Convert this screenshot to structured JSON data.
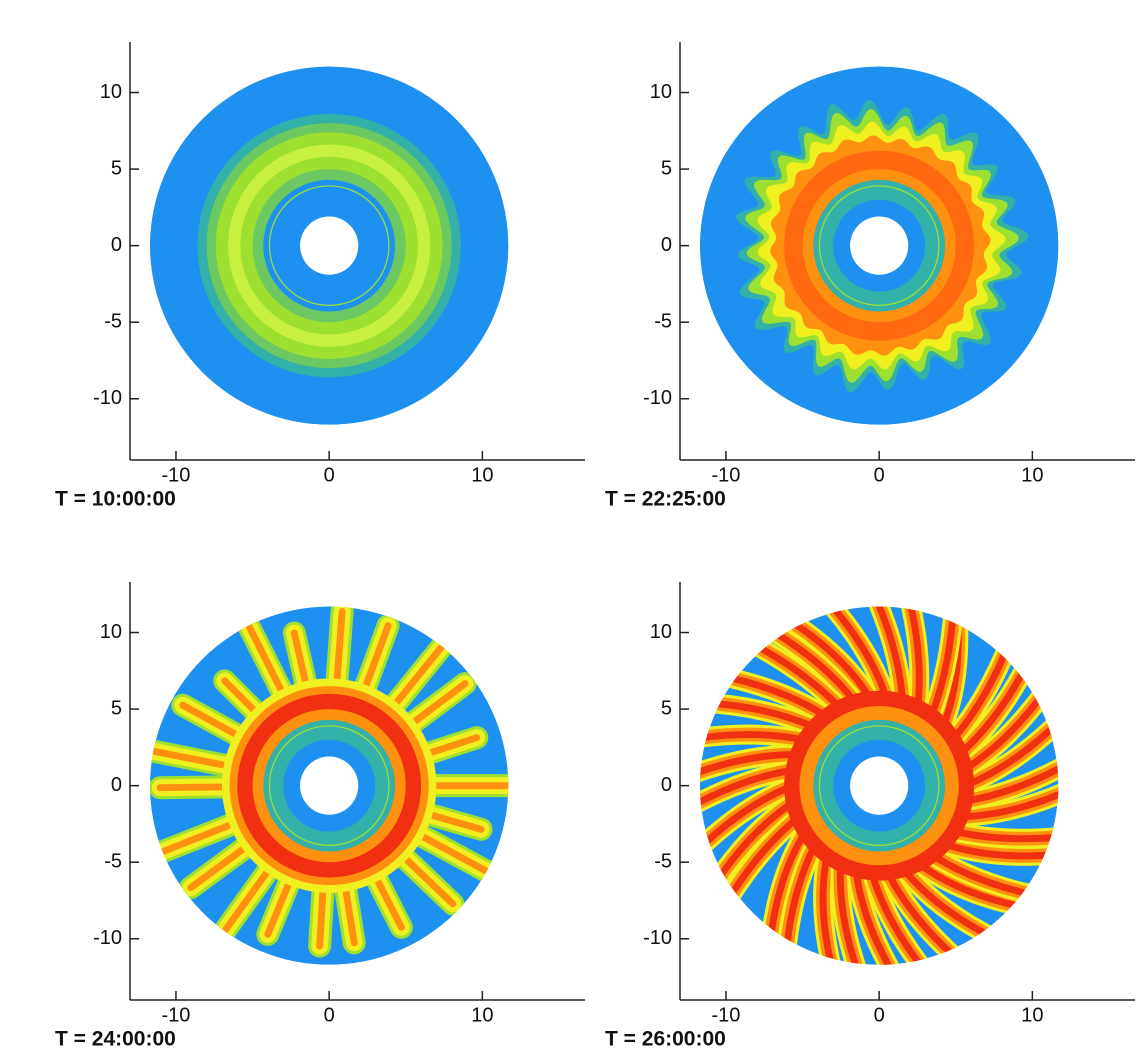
{
  "chart_data": [
    {
      "type": "contour",
      "title": "T = 10:00:00",
      "xlim": [
        -13,
        16.7
      ],
      "ylim": [
        -14,
        13.3
      ],
      "xticks": [
        -10,
        0,
        10
      ],
      "yticks": [
        -10,
        -5,
        0,
        5,
        10
      ]
    },
    {
      "type": "contour",
      "title": "T = 22:25:00",
      "xlim": [
        -13,
        16.7
      ],
      "ylim": [
        -14,
        13.3
      ],
      "xticks": [
        -10,
        0,
        10
      ],
      "yticks": [
        -10,
        -5,
        0,
        5,
        10
      ]
    },
    {
      "type": "contour",
      "title": "T = 24:00:00",
      "xlim": [
        -13,
        16.7
      ],
      "ylim": [
        -14,
        13.3
      ],
      "xticks": [
        -10,
        0,
        10
      ],
      "yticks": [
        -10,
        -5,
        0,
        5,
        10
      ]
    },
    {
      "type": "contour",
      "title": "T = 26:00:00",
      "xlim": [
        -13,
        16.7
      ],
      "ylim": [
        -14,
        13.3
      ],
      "xticks": [
        -10,
        0,
        10
      ],
      "yticks": [
        -10,
        -5,
        0,
        5,
        10
      ]
    }
  ]
}
